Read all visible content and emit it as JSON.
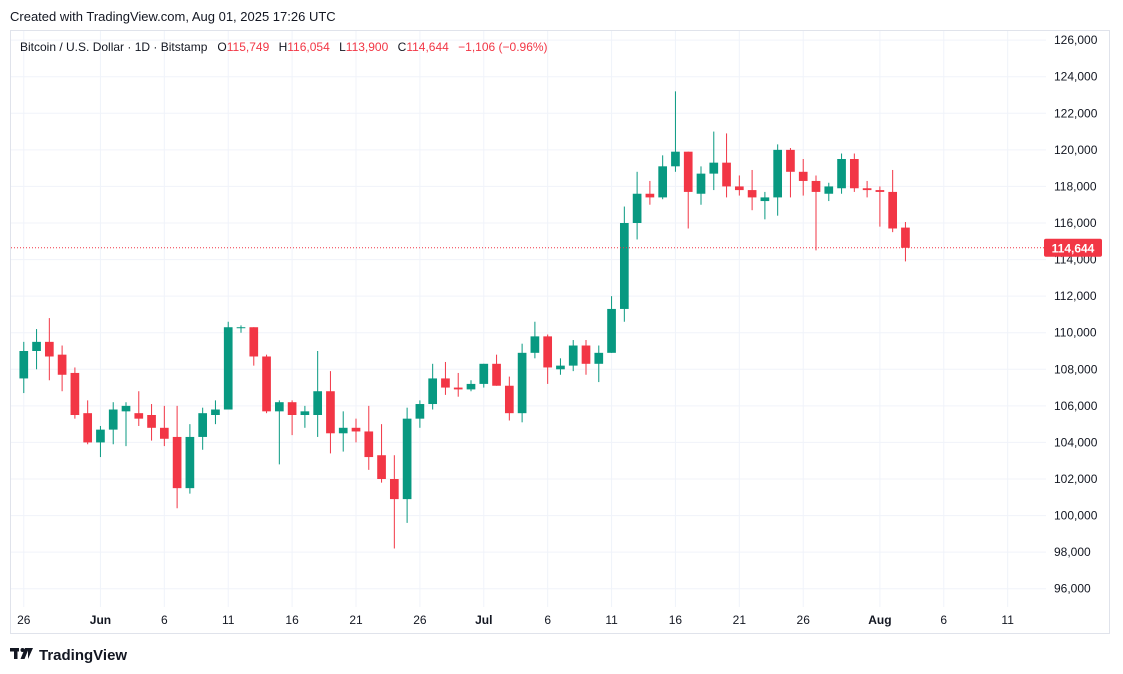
{
  "header": {
    "created": "Created with TradingView.com, Aug 01, 2025 17:26 UTC"
  },
  "legend": {
    "symbol": "Bitcoin / U.S. Dollar · 1D · Bitstamp",
    "o_label": "O",
    "o_value": "115,749",
    "h_label": "H",
    "h_value": "116,054",
    "l_label": "L",
    "l_value": "113,900",
    "c_label": "C",
    "c_value": "114,644",
    "change": "−1,106 (−0.96%)"
  },
  "footer": {
    "brand": "TradingView"
  },
  "colors": {
    "up": "#089981",
    "down": "#f23645",
    "grid": "#f0f3fa",
    "text": "#131722"
  },
  "chart_data": {
    "type": "candlestick",
    "title": "Bitcoin / U.S. Dollar · 1D · Bitstamp",
    "last_price": 114644,
    "last_price_label": "114,644",
    "ylim": [
      95000,
      126500
    ],
    "y_ticks": [
      96000,
      98000,
      100000,
      102000,
      104000,
      106000,
      108000,
      110000,
      112000,
      114000,
      116000,
      118000,
      120000,
      122000,
      124000,
      126000
    ],
    "y_tick_labels": [
      "96,000",
      "98,000",
      "100,000",
      "102,000",
      "104,000",
      "106,000",
      "108,000",
      "110,000",
      "112,000",
      "114,000",
      "116,000",
      "118,000",
      "120,000",
      "122,000",
      "124,000",
      "126,000"
    ],
    "x_range": [
      -1,
      80
    ],
    "x_ticks": [
      {
        "i": 0,
        "label": "26",
        "bold": false
      },
      {
        "i": 6,
        "label": "Jun",
        "bold": true
      },
      {
        "i": 11,
        "label": "6",
        "bold": false
      },
      {
        "i": 16,
        "label": "11",
        "bold": false
      },
      {
        "i": 21,
        "label": "16",
        "bold": false
      },
      {
        "i": 26,
        "label": "21",
        "bold": false
      },
      {
        "i": 31,
        "label": "26",
        "bold": false
      },
      {
        "i": 36,
        "label": "Jul",
        "bold": true
      },
      {
        "i": 41,
        "label": "6",
        "bold": false
      },
      {
        "i": 46,
        "label": "11",
        "bold": false
      },
      {
        "i": 51,
        "label": "16",
        "bold": false
      },
      {
        "i": 56,
        "label": "21",
        "bold": false
      },
      {
        "i": 61,
        "label": "26",
        "bold": false
      },
      {
        "i": 67,
        "label": "Aug",
        "bold": true
      },
      {
        "i": 72,
        "label": "6",
        "bold": false
      },
      {
        "i": 77,
        "label": "11",
        "bold": false
      }
    ],
    "candles": [
      {
        "o": 107500,
        "h": 109500,
        "l": 106700,
        "c": 109000
      },
      {
        "o": 109000,
        "h": 110200,
        "l": 108000,
        "c": 109500
      },
      {
        "o": 109500,
        "h": 110800,
        "l": 107400,
        "c": 108700
      },
      {
        "o": 108800,
        "h": 109300,
        "l": 106800,
        "c": 107700
      },
      {
        "o": 107800,
        "h": 108100,
        "l": 105300,
        "c": 105500
      },
      {
        "o": 105600,
        "h": 106300,
        "l": 103900,
        "c": 104000
      },
      {
        "o": 104000,
        "h": 104900,
        "l": 103200,
        "c": 104700
      },
      {
        "o": 104700,
        "h": 106200,
        "l": 103900,
        "c": 105800
      },
      {
        "o": 105700,
        "h": 106200,
        "l": 103800,
        "c": 106000
      },
      {
        "o": 105600,
        "h": 106800,
        "l": 104900,
        "c": 105300
      },
      {
        "o": 105500,
        "h": 106100,
        "l": 104100,
        "c": 104800
      },
      {
        "o": 104800,
        "h": 106000,
        "l": 103800,
        "c": 104200
      },
      {
        "o": 104300,
        "h": 106000,
        "l": 100400,
        "c": 101500
      },
      {
        "o": 101500,
        "h": 105000,
        "l": 101200,
        "c": 104300
      },
      {
        "o": 104300,
        "h": 105900,
        "l": 103600,
        "c": 105600
      },
      {
        "o": 105500,
        "h": 106300,
        "l": 105000,
        "c": 105800
      },
      {
        "o": 105800,
        "h": 110600,
        "l": 105800,
        "c": 110300
      },
      {
        "o": 110300,
        "h": 110400,
        "l": 110000,
        "c": 110300
      },
      {
        "o": 110300,
        "h": 110300,
        "l": 108200,
        "c": 108700
      },
      {
        "o": 108700,
        "h": 108800,
        "l": 105600,
        "c": 105700
      },
      {
        "o": 105700,
        "h": 106300,
        "l": 102800,
        "c": 106200
      },
      {
        "o": 106200,
        "h": 106300,
        "l": 104400,
        "c": 105500
      },
      {
        "o": 105500,
        "h": 106000,
        "l": 104800,
        "c": 105700
      },
      {
        "o": 105500,
        "h": 109000,
        "l": 104300,
        "c": 106800
      },
      {
        "o": 106800,
        "h": 107900,
        "l": 103400,
        "c": 104500
      },
      {
        "o": 104500,
        "h": 105700,
        "l": 103500,
        "c": 104800
      },
      {
        "o": 104800,
        "h": 105300,
        "l": 104000,
        "c": 104600
      },
      {
        "o": 104600,
        "h": 106000,
        "l": 102500,
        "c": 103200
      },
      {
        "o": 103300,
        "h": 105000,
        "l": 101800,
        "c": 102000
      },
      {
        "o": 102000,
        "h": 103300,
        "l": 98200,
        "c": 100900
      },
      {
        "o": 100900,
        "h": 105900,
        "l": 99600,
        "c": 105300
      },
      {
        "o": 105300,
        "h": 106300,
        "l": 104800,
        "c": 106100
      },
      {
        "o": 106100,
        "h": 108300,
        "l": 105800,
        "c": 107500
      },
      {
        "o": 107500,
        "h": 108400,
        "l": 106600,
        "c": 107000
      },
      {
        "o": 107000,
        "h": 107800,
        "l": 106500,
        "c": 106900
      },
      {
        "o": 106900,
        "h": 107400,
        "l": 106800,
        "c": 107200
      },
      {
        "o": 107200,
        "h": 108300,
        "l": 107000,
        "c": 108300
      },
      {
        "o": 108300,
        "h": 108800,
        "l": 107100,
        "c": 107100
      },
      {
        "o": 107100,
        "h": 107600,
        "l": 105200,
        "c": 105600
      },
      {
        "o": 105600,
        "h": 109400,
        "l": 105100,
        "c": 108900
      },
      {
        "o": 108900,
        "h": 110600,
        "l": 108600,
        "c": 109800
      },
      {
        "o": 109800,
        "h": 109900,
        "l": 107200,
        "c": 108100
      },
      {
        "o": 108000,
        "h": 108600,
        "l": 107700,
        "c": 108200
      },
      {
        "o": 108200,
        "h": 109600,
        "l": 107900,
        "c": 109300
      },
      {
        "o": 109300,
        "h": 109600,
        "l": 107700,
        "c": 108300
      },
      {
        "o": 108300,
        "h": 109300,
        "l": 107300,
        "c": 108900
      },
      {
        "o": 108900,
        "h": 112000,
        "l": 108900,
        "c": 111300
      },
      {
        "o": 111300,
        "h": 116900,
        "l": 110600,
        "c": 116000
      },
      {
        "o": 116000,
        "h": 118800,
        "l": 115100,
        "c": 117600
      },
      {
        "o": 117600,
        "h": 118300,
        "l": 117000,
        "c": 117400
      },
      {
        "o": 117400,
        "h": 119700,
        "l": 117300,
        "c": 119100
      },
      {
        "o": 119100,
        "h": 123200,
        "l": 118800,
        "c": 119900
      },
      {
        "o": 119900,
        "h": 119900,
        "l": 115700,
        "c": 117700
      },
      {
        "o": 117600,
        "h": 119100,
        "l": 117000,
        "c": 118700
      },
      {
        "o": 118700,
        "h": 121000,
        "l": 117800,
        "c": 119300
      },
      {
        "o": 119300,
        "h": 120900,
        "l": 117400,
        "c": 118000
      },
      {
        "o": 118000,
        "h": 118600,
        "l": 117500,
        "c": 117800
      },
      {
        "o": 117800,
        "h": 118900,
        "l": 116700,
        "c": 117400
      },
      {
        "o": 117200,
        "h": 117700,
        "l": 116200,
        "c": 117400
      },
      {
        "o": 117400,
        "h": 120300,
        "l": 116400,
        "c": 120000
      },
      {
        "o": 120000,
        "h": 120100,
        "l": 117400,
        "c": 118800
      },
      {
        "o": 118800,
        "h": 119500,
        "l": 117500,
        "c": 118300
      },
      {
        "o": 118300,
        "h": 118600,
        "l": 114500,
        "c": 117700
      },
      {
        "o": 117600,
        "h": 118200,
        "l": 117200,
        "c": 118000
      },
      {
        "o": 117900,
        "h": 119800,
        "l": 117600,
        "c": 119500
      },
      {
        "o": 119500,
        "h": 119800,
        "l": 117700,
        "c": 117900
      },
      {
        "o": 117900,
        "h": 118300,
        "l": 117400,
        "c": 117800
      },
      {
        "o": 117800,
        "h": 118000,
        "l": 115800,
        "c": 117700
      },
      {
        "o": 117700,
        "h": 118900,
        "l": 115500,
        "c": 115700
      },
      {
        "o": 115749,
        "h": 116054,
        "l": 113900,
        "c": 114644
      }
    ]
  }
}
